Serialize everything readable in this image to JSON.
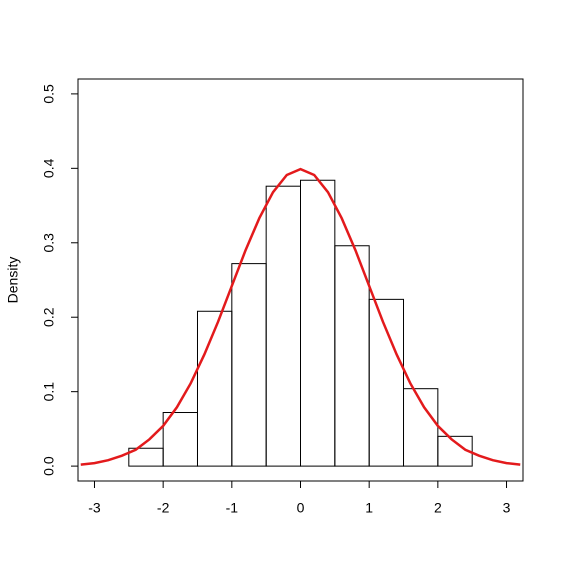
{
  "chart_data": {
    "type": "histogram",
    "ylabel": "Density",
    "bins": [
      -2.5,
      -2,
      -1.5,
      -1,
      -0.5,
      0,
      0.5,
      1,
      1.5,
      2,
      2.5
    ],
    "values": [
      0.024,
      0.072,
      0.208,
      0.272,
      0.376,
      0.384,
      0.296,
      0.224,
      0.104,
      0.04
    ],
    "color": "#000000",
    "curve": {
      "color": "#e31a1c",
      "x": [
        -3.2,
        -3.0,
        -2.8,
        -2.6,
        -2.4,
        -2.2,
        -2.0,
        -1.8,
        -1.6,
        -1.4,
        -1.2,
        -1.0,
        -0.8,
        -0.6,
        -0.4,
        -0.2,
        0,
        0.2,
        0.4,
        0.6,
        0.8,
        1.0,
        1.2,
        1.4,
        1.6,
        1.8,
        2.0,
        2.2,
        2.4,
        2.6,
        2.8,
        3.0,
        3.2
      ],
      "values": [
        0.002,
        0.004,
        0.008,
        0.014,
        0.022,
        0.036,
        0.054,
        0.079,
        0.111,
        0.15,
        0.194,
        0.242,
        0.29,
        0.333,
        0.368,
        0.391,
        0.399,
        0.391,
        0.368,
        0.333,
        0.29,
        0.242,
        0.194,
        0.15,
        0.111,
        0.079,
        0.054,
        0.036,
        0.022,
        0.014,
        0.008,
        0.004,
        0.002
      ]
    },
    "xlim": [
      -3.24,
      3.24
    ],
    "ylim": [
      -0.02,
      0.52
    ],
    "xticks": [
      -3,
      -2,
      -1,
      0,
      1,
      2,
      3
    ],
    "yticks": [
      {
        "value": 0,
        "label": "0.0"
      },
      0.1,
      0.2,
      0.3,
      0.4,
      0.5
    ]
  }
}
